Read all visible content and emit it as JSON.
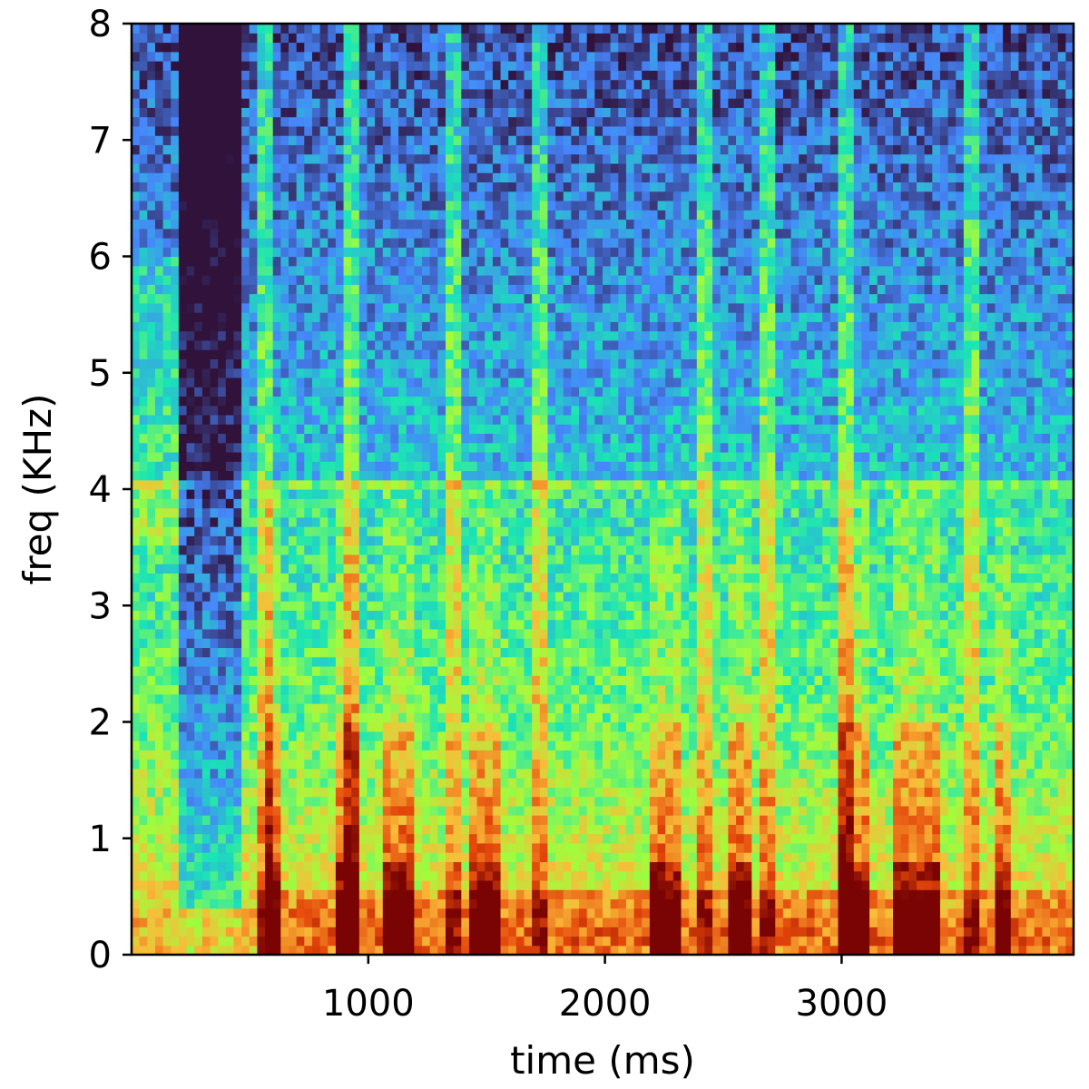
{
  "chart_data": {
    "type": "heatmap",
    "title": "",
    "xlabel": "time (ms)",
    "ylabel": "freq (KHz)",
    "xlim": [
      0,
      3980
    ],
    "ylim": [
      0,
      8
    ],
    "x_ticks": [
      1000,
      2000,
      3000
    ],
    "x_tick_labels": [
      "1000",
      "2000",
      "3000"
    ],
    "y_ticks": [
      0,
      1,
      2,
      3,
      4,
      5,
      6,
      7,
      8
    ],
    "y_tick_labels": [
      "0",
      "1",
      "2",
      "3",
      "4",
      "5",
      "6",
      "7",
      "8"
    ],
    "colormap": "turbo",
    "grid": false,
    "silent_regions_ms": [
      [
        200,
        480
      ]
    ],
    "energy_bursts_ms": [
      [
        560,
        640
      ],
      [
        860,
        960
      ],
      [
        1050,
        1200
      ],
      [
        1420,
        1560
      ],
      [
        2180,
        2320
      ],
      [
        2520,
        2620
      ],
      [
        3000,
        3130
      ],
      [
        3230,
        3420
      ],
      [
        3650,
        3720
      ]
    ],
    "strong_high_freq_streaks_ms": [
      570,
      930,
      1370,
      1720,
      2420,
      2700,
      3020,
      3560
    ],
    "formant_band_khz": [
      4.0,
      4.1
    ]
  },
  "colors": {
    "low": "#30123b",
    "blue": "#4686fb",
    "cyan": "#1ae4b6",
    "green": "#a2fc3c",
    "yellow": "#fabb39",
    "orange": "#e4460a",
    "high": "#7a0403"
  }
}
